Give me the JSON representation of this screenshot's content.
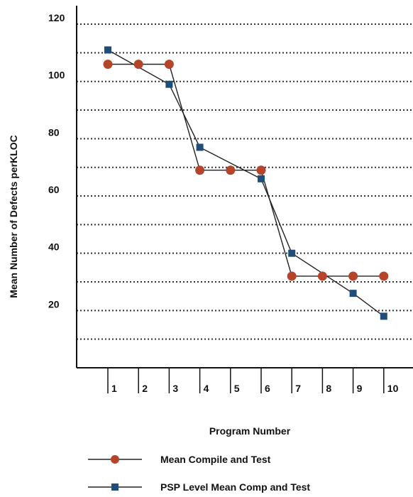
{
  "chart_data": {
    "type": "line",
    "xlabel": "Program Number",
    "ylabel": "Mean Number of Defects perKLOC",
    "x": [
      1,
      2,
      3,
      4,
      5,
      6,
      7,
      8,
      9,
      10
    ],
    "x_tick_labels": [
      "1",
      "2",
      "3",
      "4",
      "5",
      "6",
      "7",
      "8",
      "9",
      "10"
    ],
    "y_tick_labels": [
      "20",
      "40",
      "60",
      "80",
      "100",
      "120"
    ],
    "y_tick_values": [
      20,
      40,
      60,
      80,
      100,
      120
    ],
    "ylim": [
      0,
      130
    ],
    "grid": "horizontal dotted",
    "legend_position": "bottom",
    "series": [
      {
        "name": "Mean Compile and Test",
        "marker": "circle",
        "color": "#b5452a",
        "values": [
          106,
          106,
          106,
          69,
          69,
          69,
          32,
          32,
          32,
          32
        ]
      },
      {
        "name": "PSP Level Mean Comp and Test",
        "marker": "square",
        "color": "#1f4e7a",
        "values": [
          111,
          null,
          99,
          77,
          null,
          66,
          40,
          null,
          26,
          18
        ]
      }
    ]
  }
}
